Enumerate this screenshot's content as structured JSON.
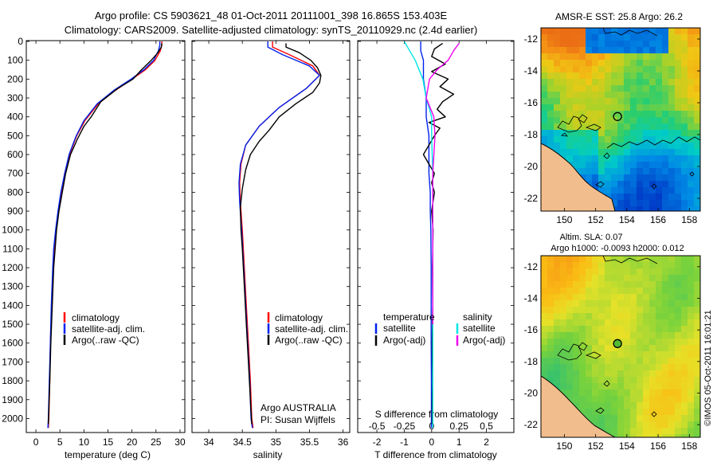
{
  "header": {
    "title_line1": "Argo profile: CS 5903621_48 01-Oct-2011 20111001_398 16.865S 153.403E",
    "title_line2": "Climatology: CARS2009. Satellite-adjusted climatology: synTS_20110929.nc (2.4d earlier)"
  },
  "colors": {
    "climatology": "#ff0000",
    "satellite": "#0022ee",
    "argo": "#000000",
    "sat_salinity": "#00e5e5",
    "argo_salinity": "#ee00ee",
    "land": "#f2bd8c",
    "grid_tick": "#000000"
  },
  "depth_axis": {
    "min": 0,
    "max": 2070,
    "ticks": [
      0,
      100,
      200,
      300,
      400,
      500,
      600,
      700,
      800,
      900,
      1000,
      1100,
      1200,
      1300,
      1400,
      1500,
      1600,
      1700,
      1800,
      1900,
      2000
    ]
  },
  "panels": {
    "temperature": {
      "xlabel": "temperature (deg C)",
      "legend": [
        "climatology",
        "satellite-adj. clim.",
        "Argo(..raw -QC)"
      ]
    },
    "salinity": {
      "xlabel": "salinity",
      "legend": [
        "climatology",
        "satellite-adj. clim.",
        "Argo(..raw -QC)"
      ],
      "note_line1": "Argo AUSTRALIA",
      "note_line2": "PI: Susan Wijffels"
    },
    "difference": {
      "xlabel": "T difference from climatology",
      "top_xlabel": "S difference from climatology",
      "legend_temperature_header": "temperature",
      "legend_salinity_header": "salinity",
      "legend_temperature": [
        "satellite",
        "Argo(-adj)"
      ],
      "legend_salinity": [
        "satellite",
        "Argo(-adj)"
      ]
    }
  },
  "maps": {
    "sst": {
      "title": "AMSR-E SST: 25.8 Argo: 26.2",
      "lon_ticks": [
        "150",
        "152",
        "154",
        "156",
        "158"
      ],
      "lat_ticks": [
        "-12",
        "-14",
        "-16",
        "-18",
        "-20",
        "-22"
      ]
    },
    "sla": {
      "title_line1": "Altim. SLA: 0.07",
      "title_line2": "Argo h1000: -0.0093 h2000: 0.012",
      "lon_ticks": [
        "150",
        "152",
        "154",
        "156",
        "158"
      ],
      "lat_ticks": [
        "-12",
        "-14",
        "-16",
        "-18",
        "-20",
        "-22"
      ]
    },
    "argo_position": {
      "lon": 153.403,
      "lat": -16.865
    }
  },
  "footer": {
    "timestamp": "©IMOS 05-Oct-2011 16:01:21"
  },
  "chart_data": [
    {
      "type": "line",
      "title": "",
      "xlabel": "temperature (deg C)",
      "ylabel": "depth",
      "xlim": [
        -2,
        31
      ],
      "ylim": [
        2070,
        0
      ],
      "xticks": [
        0,
        5,
        10,
        15,
        20,
        25,
        30
      ],
      "series": [
        {
          "name": "climatology",
          "x": [
            26.2,
            26.2,
            25.9,
            24.8,
            22.8,
            20.0,
            16.5,
            13.0,
            10.2,
            8.5,
            7.0,
            6.0,
            5.3,
            4.7,
            4.2,
            3.8,
            3.6,
            3.3,
            3.0,
            2.9,
            2.7,
            2.6
          ],
          "y": [
            0,
            20,
            50,
            100,
            150,
            200,
            260,
            330,
            420,
            500,
            600,
            700,
            800,
            900,
            1000,
            1100,
            1200,
            1400,
            1600,
            1800,
            2000,
            2050
          ]
        },
        {
          "name": "satellite-adj. clim.",
          "x": [
            25.8,
            25.8,
            25.5,
            24.5,
            22.5,
            19.8,
            16.2,
            12.8,
            10.0,
            8.4,
            6.9,
            6.0,
            5.2,
            4.6,
            4.1,
            3.7,
            3.5,
            3.2,
            3.0,
            2.8,
            2.6,
            2.5
          ],
          "y": [
            0,
            20,
            50,
            100,
            150,
            200,
            260,
            330,
            420,
            500,
            600,
            700,
            800,
            900,
            1000,
            1100,
            1200,
            1400,
            1600,
            1800,
            2000,
            2050
          ]
        },
        {
          "name": "Argo(..raw -QC)",
          "x": [
            26.2,
            26.1,
            25.4,
            24.0,
            22.0,
            20.2,
            17.0,
            13.5,
            11.5,
            10.0,
            8.6,
            7.2,
            6.2,
            5.5,
            4.8,
            4.3,
            4.0,
            3.7,
            3.4,
            3.1,
            2.9,
            2.7,
            2.6
          ],
          "y": [
            10,
            30,
            60,
            100,
            150,
            200,
            250,
            320,
            400,
            450,
            520,
            600,
            700,
            800,
            900,
            1000,
            1100,
            1200,
            1400,
            1600,
            1800,
            1950,
            2030
          ]
        }
      ]
    },
    {
      "type": "line",
      "title": "",
      "xlabel": "salinity",
      "ylabel": "depth",
      "xlim": [
        33.75,
        36.1
      ],
      "ylim": [
        2070,
        0
      ],
      "xticks": [
        34,
        34.5,
        35,
        35.5,
        36
      ],
      "series": [
        {
          "name": "climatology",
          "x": [
            34.95,
            34.95,
            35.2,
            35.55,
            35.65,
            35.45,
            35.05,
            34.75,
            34.55,
            34.48,
            34.46,
            34.47,
            34.5,
            34.53,
            34.56,
            34.59,
            34.62,
            34.64,
            34.66
          ],
          "y": [
            0,
            30,
            70,
            130,
            180,
            250,
            350,
            450,
            550,
            650,
            750,
            850,
            1000,
            1200,
            1400,
            1600,
            1800,
            2000,
            2050
          ]
        },
        {
          "name": "satellite-adj. clim.",
          "x": [
            34.88,
            34.88,
            35.1,
            35.5,
            35.65,
            35.45,
            35.05,
            34.75,
            34.55,
            34.47,
            34.45,
            34.46,
            34.49,
            34.52,
            34.55,
            34.58,
            34.61,
            34.63,
            34.65
          ],
          "y": [
            0,
            30,
            70,
            130,
            180,
            250,
            350,
            450,
            550,
            650,
            750,
            850,
            1000,
            1200,
            1400,
            1600,
            1800,
            2000,
            2050
          ]
        },
        {
          "name": "Argo(..raw -QC)",
          "x": [
            35.15,
            35.15,
            35.35,
            35.52,
            35.62,
            35.67,
            35.65,
            35.55,
            35.3,
            35.05,
            34.9,
            34.75,
            34.62,
            34.55,
            34.5,
            34.47,
            34.48,
            34.5,
            34.53,
            34.56,
            34.59,
            34.62,
            34.64
          ],
          "y": [
            10,
            30,
            60,
            100,
            140,
            180,
            220,
            270,
            330,
            400,
            470,
            530,
            600,
            680,
            780,
            880,
            1000,
            1100,
            1300,
            1500,
            1700,
            1900,
            2030
          ]
        }
      ]
    },
    {
      "type": "line",
      "title": "",
      "xlabel": "T difference from climatology",
      "ylabel": "depth",
      "xlim": [
        -2.7,
        3.0
      ],
      "ylim": [
        2070,
        0
      ],
      "xticks": [
        -2,
        -1,
        0,
        1,
        2
      ],
      "top_xlabel": "S difference from climatology",
      "top_xticks": [
        -0.5,
        -0.25,
        0,
        0.25,
        0.5
      ],
      "series": [
        {
          "name": "temperature satellite",
          "x": [
            -0.4,
            -0.4,
            -0.3,
            -0.3,
            -0.2,
            -0.2,
            -0.1,
            -0.1,
            -0.1,
            -0.05,
            -0.05,
            -0.03,
            -0.02,
            -0.02,
            -0.02,
            -0.01,
            -0.01,
            -0.01
          ],
          "y": [
            0,
            50,
            100,
            200,
            300,
            400,
            500,
            600,
            700,
            800,
            900,
            1000,
            1200,
            1400,
            1600,
            1800,
            2000,
            2050
          ]
        },
        {
          "name": "temperature Argo(-adj)",
          "x": [
            0.4,
            0.1,
            0.0,
            0.5,
            0.0,
            0.6,
            0.3,
            0.8,
            0.4,
            0.2,
            0.5,
            -0.1,
            0.3,
            0.1,
            -0.1,
            -0.3,
            -0.1,
            0.1,
            0.0,
            0.1,
            0.0,
            0.05,
            0.03,
            0.04,
            0.02,
            0.03,
            0.02,
            0.02
          ],
          "y": [
            10,
            40,
            80,
            120,
            160,
            200,
            240,
            280,
            320,
            360,
            400,
            430,
            460,
            500,
            550,
            600,
            650,
            700,
            750,
            800,
            900,
            1000,
            1200,
            1400,
            1600,
            1800,
            1950,
            2030
          ]
        },
        {
          "name": "salinity satellite",
          "x": [
            -0.25,
            -0.2,
            -0.15,
            -0.08,
            -0.05,
            0.0,
            0.0,
            0.01,
            0.01,
            0.01,
            0.01,
            0.01,
            0.01,
            0.01
          ],
          "y": [
            0,
            50,
            100,
            200,
            300,
            400,
            500,
            700,
            900,
            1100,
            1400,
            1700,
            2000,
            2050
          ]
        },
        {
          "name": "salinity Argo(-adj)",
          "x": [
            0.25,
            0.2,
            0.15,
            0.05,
            -0.02,
            -0.05,
            0.02,
            0.03,
            0.01,
            0.01,
            0.01
          ],
          "y": [
            10,
            50,
            100,
            150,
            200,
            300,
            400,
            500,
            700,
            1000,
            1500
          ]
        }
      ]
    }
  ]
}
